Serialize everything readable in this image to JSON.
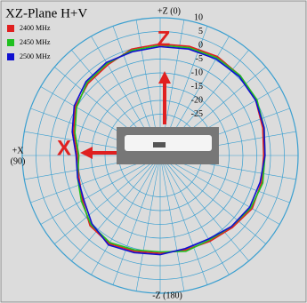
{
  "chart_data": {
    "type": "polar",
    "title": "XZ-Plane  H+V",
    "theta": [
      0,
      15,
      30,
      45,
      60,
      75,
      90,
      105,
      120,
      135,
      150,
      165,
      180,
      195,
      210,
      225,
      240,
      255,
      270,
      285,
      300,
      315,
      330,
      345
    ],
    "series": [
      {
        "name": "2400 MHz",
        "color": "#e02020",
        "values": [
          0.5,
          0,
          -2,
          -3,
          -4.5,
          -7.5,
          -10,
          -9.5,
          -7.5,
          -4,
          -3,
          -4,
          -4.5,
          -4.5,
          -4,
          -3,
          -1.5,
          -2,
          -2.5,
          -1.5,
          0,
          1,
          1.5,
          1
        ]
      },
      {
        "name": "2450 MHz",
        "color": "#20c020",
        "values": [
          0,
          -0.5,
          -1.5,
          -2.5,
          -5,
          -8,
          -10.5,
          -9,
          -7,
          -4.5,
          -3.5,
          -4.5,
          -5,
          -4,
          -4.5,
          -3.5,
          -2,
          -1.5,
          -2,
          -1,
          0.5,
          1,
          1,
          0.5
        ]
      },
      {
        "name": "2500 MHz",
        "color": "#1010d0",
        "values": [
          -0.5,
          -1,
          -1,
          -2,
          -4,
          -7,
          -9.5,
          -9,
          -8,
          -5,
          -2.5,
          -3.5,
          -4,
          -5,
          -5,
          -3.5,
          -2.5,
          -2.5,
          -2,
          -1,
          0,
          0.5,
          0.5,
          0
        ]
      }
    ],
    "rlim": [
      -40,
      10
    ],
    "rticks": [
      10,
      5,
      0,
      -5,
      -10,
      -15,
      -20,
      -25
    ],
    "angle_labels": [
      "+Z (0)",
      "+X",
      "(90)",
      "-Z (180)"
    ],
    "annotations": [
      "Z",
      "X"
    ]
  }
}
